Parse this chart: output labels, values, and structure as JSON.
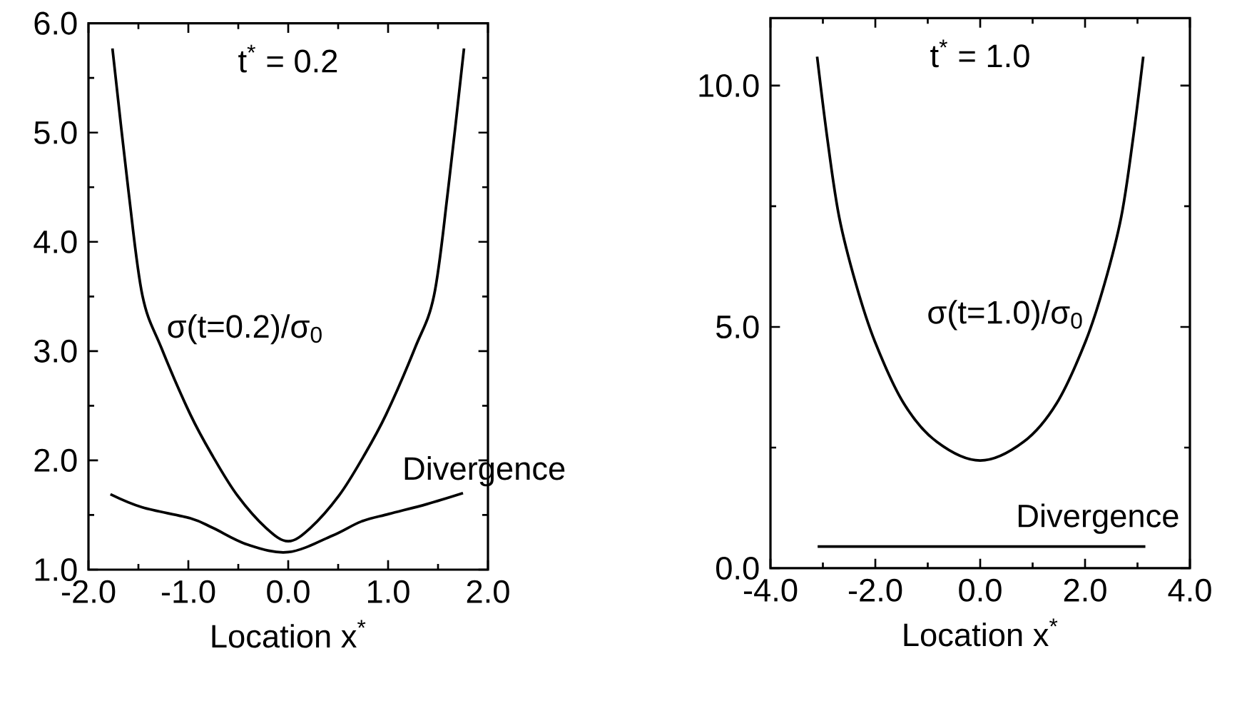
{
  "chart_data": [
    {
      "type": "line",
      "title": "t$^{*}$ = 0.2",
      "xlabel": "Location x$^{*}$",
      "xlim": [
        -2,
        2
      ],
      "ylim": [
        1,
        6
      ],
      "xticks": [
        {
          "value": -2,
          "label": "-2.0"
        },
        {
          "value": -1,
          "label": "-1.0"
        },
        {
          "value": 0,
          "label": "0.0"
        },
        {
          "value": 1,
          "label": "1.0"
        },
        {
          "value": 2,
          "label": "2.0"
        }
      ],
      "yticks": [
        {
          "value": 1,
          "label": "1.0"
        },
        {
          "value": 2,
          "label": "2.0"
        },
        {
          "value": 3,
          "label": "3.0"
        },
        {
          "value": 4,
          "label": "4.0"
        },
        {
          "value": 5,
          "label": "5.0"
        },
        {
          "value": 6,
          "label": "6.0"
        }
      ],
      "series": [
        {
          "name": "σ(t=0.2)/σ$_{0}$",
          "color": "#000000",
          "x": [
            -1.76,
            -1.6,
            -1.46,
            -1.27,
            -0.98,
            -0.75,
            -0.51,
            -0.22,
            0,
            0.22,
            0.51,
            0.75,
            0.98,
            1.27,
            1.46,
            1.6,
            1.76
          ],
          "values": [
            5.77,
            4.47,
            3.51,
            3.03,
            2.42,
            2.03,
            1.68,
            1.38,
            1.26,
            1.38,
            1.68,
            2.03,
            2.42,
            3.03,
            3.51,
            4.47,
            5.77
          ]
        },
        {
          "name": "Divergence",
          "color": "#000000",
          "x": [
            -1.78,
            -1.46,
            -0.98,
            -0.75,
            -0.41,
            0,
            0.44,
            0.73,
            1.01,
            1.39,
            1.75
          ],
          "values": [
            1.69,
            1.57,
            1.47,
            1.38,
            1.23,
            1.16,
            1.31,
            1.44,
            1.51,
            1.6,
            1.7
          ]
        }
      ]
    },
    {
      "type": "line",
      "title": "t$^{*}$ = 1.0",
      "xlabel": "Location x$^{*}$",
      "xlim": [
        -4,
        4
      ],
      "ylim": [
        0,
        11.4
      ],
      "xticks": [
        {
          "value": -4,
          "label": "-4.0"
        },
        {
          "value": -2,
          "label": "-2.0"
        },
        {
          "value": 0,
          "label": "0.0"
        },
        {
          "value": 2,
          "label": "2.0"
        },
        {
          "value": 4,
          "label": "4.0"
        }
      ],
      "yticks": [
        {
          "value": 0,
          "label": "0.0"
        },
        {
          "value": 5,
          "label": "5.0"
        },
        {
          "value": 10,
          "label": "10.0"
        }
      ],
      "series": [
        {
          "name": "σ(t=1.0)/σ$_{0}$",
          "color": "#000000",
          "x": [
            -3.11,
            -2.91,
            -2.69,
            -2.37,
            -2.01,
            -1.46,
            -0.83,
            0,
            0.83,
            1.46,
            2.01,
            2.37,
            2.69,
            2.91,
            3.11
          ],
          "values": [
            10.6,
            8.86,
            7.28,
            5.89,
            4.7,
            3.42,
            2.62,
            2.23,
            2.62,
            3.42,
            4.7,
            5.89,
            7.28,
            8.86,
            10.6
          ]
        },
        {
          "name": "Divergence",
          "color": "#000000",
          "x": [
            -3.1,
            3.15
          ],
          "values": [
            0.45,
            0.45
          ]
        }
      ]
    }
  ]
}
